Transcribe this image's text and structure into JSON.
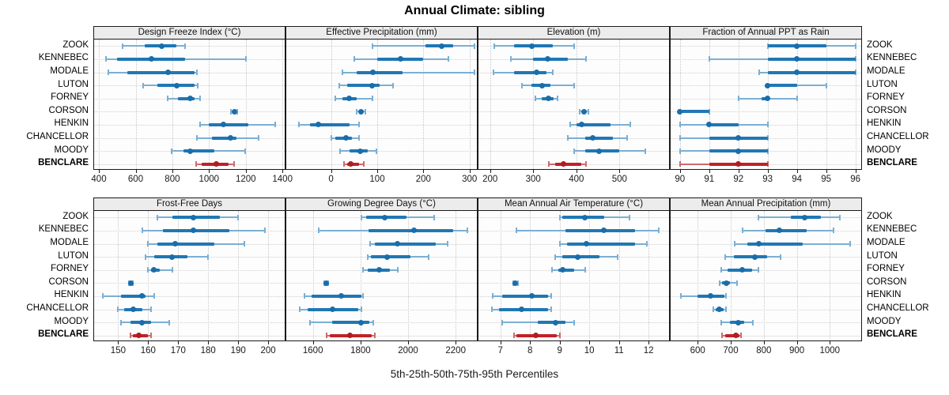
{
  "title": "Annual Climate: sibling",
  "caption": "5th-25th-50th-75th-95th Percentiles",
  "highlight_station": "BENCLARE",
  "colors": {
    "blue": "#2077b4",
    "blue_light": "#7bafd3",
    "blue_dot": "#1a6dab",
    "red": "#bf2227",
    "red_light": "#cf6a6c",
    "red_dot": "#b01c20",
    "strip_bg": "#ececec",
    "grid": "#c9c9c9",
    "border": "#1a1a1a"
  },
  "chart_data": {
    "type": "percentile-dotplot-trellis",
    "percentiles": [
      5,
      25,
      50,
      75,
      95
    ],
    "legend_note": "dot = median, thick bar = 25th-75th, thin whisker with caps = 5th-95th",
    "rows": [
      "ZOOK",
      "KENNEBEC",
      "MODALE",
      "LUTON",
      "FORNEY",
      "CORSON",
      "HENKIN",
      "CHANCELLOR",
      "MOODY",
      "BENCLARE"
    ],
    "panels": [
      {
        "title": "Design Freeze Index (°C)",
        "row": 0,
        "ticks": [
          400,
          600,
          800,
          1000,
          1200,
          1400
        ],
        "xlim": [
          374,
          1412
        ],
        "values": [
          [
            530,
            650,
            740,
            820,
            870
          ],
          [
            440,
            500,
            685,
            870,
            1200
          ],
          [
            450,
            555,
            775,
            920,
            935
          ],
          [
            640,
            720,
            825,
            920,
            940
          ],
          [
            775,
            830,
            895,
            920,
            950
          ],
          [
            1120,
            1130,
            1137,
            1145,
            1152
          ],
          [
            950,
            1000,
            1080,
            1215,
            1360
          ],
          [
            935,
            1015,
            1115,
            1150,
            1270
          ],
          [
            795,
            860,
            895,
            1030,
            1195
          ],
          [
            930,
            960,
            1040,
            1105,
            1135
          ]
        ]
      },
      {
        "title": "Effective Precipitation (mm)",
        "row": 0,
        "ticks": [
          0,
          100,
          200,
          300
        ],
        "xlim": [
          -97,
          316
        ],
        "values": [
          [
            90,
            205,
            240,
            265,
            310
          ],
          [
            50,
            100,
            150,
            200,
            255
          ],
          [
            25,
            55,
            90,
            155,
            310
          ],
          [
            18,
            35,
            88,
            105,
            135
          ],
          [
            10,
            25,
            40,
            55,
            90
          ],
          [
            55,
            60,
            65,
            70,
            75
          ],
          [
            -70,
            -45,
            -28,
            40,
            60
          ],
          [
            0,
            10,
            32,
            45,
            60
          ],
          [
            20,
            40,
            63,
            80,
            98
          ],
          [
            28,
            35,
            42,
            60,
            70
          ]
        ]
      },
      {
        "title": "Elevation (m)",
        "row": 0,
        "ticks": [
          200,
          300,
          400,
          500
        ],
        "xlim": [
          173,
          615
        ],
        "values": [
          [
            210,
            255,
            297,
            345,
            395
          ],
          [
            248,
            300,
            333,
            380,
            422
          ],
          [
            207,
            255,
            307,
            330,
            345
          ],
          [
            273,
            295,
            320,
            340,
            395
          ],
          [
            305,
            320,
            335,
            348,
            357
          ],
          [
            408,
            413,
            417,
            423,
            428
          ],
          [
            385,
            400,
            413,
            480,
            525
          ],
          [
            380,
            420,
            438,
            485,
            518
          ],
          [
            395,
            420,
            453,
            500,
            560
          ],
          [
            337,
            350,
            370,
            412,
            422
          ]
        ]
      },
      {
        "title": "Fraction of Annual PPT as Rain",
        "row": 0,
        "ticks": [
          90,
          91,
          92,
          93,
          94,
          95,
          96
        ],
        "xlim": [
          89.68,
          96.2
        ],
        "values": [
          [
            93,
            93,
            94,
            95,
            96
          ],
          [
            91,
            93,
            94,
            96,
            96
          ],
          [
            92.7,
            93,
            94,
            96,
            96
          ],
          [
            93,
            93,
            93,
            94,
            95
          ],
          [
            92,
            92.8,
            93,
            93,
            94
          ],
          [
            90,
            90,
            90,
            91,
            91
          ],
          [
            90,
            91,
            91,
            92,
            93
          ],
          [
            90,
            91,
            92,
            93,
            93
          ],
          [
            90,
            91,
            92,
            93,
            93
          ],
          [
            90,
            91,
            92,
            93,
            93
          ]
        ]
      },
      {
        "title": "Frost-Free Days",
        "row": 1,
        "ticks": [
          150,
          160,
          170,
          180,
          190,
          200
        ],
        "xlim": [
          142,
          205.5
        ],
        "values": [
          [
            163,
            168,
            175,
            184,
            190
          ],
          [
            158,
            165,
            175,
            187,
            199
          ],
          [
            160,
            163,
            169,
            182,
            192
          ],
          [
            159,
            162,
            168,
            173,
            180
          ],
          [
            160,
            161,
            162,
            164,
            168
          ],
          [
            153.5,
            154,
            154.3,
            154.7,
            155
          ],
          [
            145,
            151,
            158,
            159,
            162
          ],
          [
            150,
            152,
            155,
            158,
            161
          ],
          [
            151,
            154,
            158,
            161,
            167
          ],
          [
            154,
            155,
            157,
            160,
            161
          ]
        ]
      },
      {
        "title": "Growing Degree Days (°C)",
        "row": 1,
        "ticks": [
          1600,
          1800,
          2000,
          2200
        ],
        "xlim": [
          1488,
          2289
        ],
        "values": [
          [
            1805,
            1825,
            1900,
            1995,
            2110
          ],
          [
            1625,
            1835,
            2025,
            2190,
            2250
          ],
          [
            1840,
            1860,
            1955,
            2115,
            2165
          ],
          [
            1830,
            1845,
            1910,
            2010,
            2085
          ],
          [
            1810,
            1830,
            1880,
            1925,
            1955
          ],
          [
            1646,
            1650,
            1655,
            1660,
            1665
          ],
          [
            1565,
            1595,
            1720,
            1803,
            1810
          ],
          [
            1545,
            1578,
            1682,
            1792,
            1805
          ],
          [
            1588,
            1682,
            1803,
            1836,
            1852
          ],
          [
            1657,
            1670,
            1755,
            1847,
            1861
          ]
        ]
      },
      {
        "title": "Mean Annual Air Temperature (°C)",
        "row": 1,
        "ticks": [
          7,
          8,
          9,
          10,
          11,
          12
        ],
        "xlim": [
          6.26,
          12.69
        ],
        "values": [
          [
            9.0,
            9.1,
            9.85,
            10.5,
            11.35
          ],
          [
            7.55,
            9.2,
            10.5,
            11.55,
            12.35
          ],
          [
            9.0,
            9.25,
            9.9,
            11.55,
            11.95
          ],
          [
            8.85,
            9.1,
            9.6,
            10.35,
            10.95
          ],
          [
            8.75,
            8.95,
            9.1,
            9.5,
            9.85
          ],
          [
            7.42,
            7.46,
            7.5,
            7.55,
            7.6
          ],
          [
            6.75,
            7.05,
            8.05,
            8.6,
            8.7
          ],
          [
            6.7,
            6.95,
            7.7,
            8.6,
            8.7
          ],
          [
            7.05,
            8.25,
            8.85,
            9.2,
            9.5
          ],
          [
            7.45,
            7.55,
            8.2,
            8.9,
            9.0
          ]
        ]
      },
      {
        "title": "Mean Annual Precipitation (mm)",
        "row": 1,
        "ticks": [
          600,
          700,
          800,
          900,
          1000
        ],
        "xlim": [
          518,
          1095
        ],
        "values": [
          [
            784,
            882,
            924,
            974,
            1030
          ],
          [
            735,
            805,
            848,
            930,
            1010
          ],
          [
            712,
            750,
            784,
            918,
            1062
          ],
          [
            684,
            710,
            774,
            810,
            850
          ],
          [
            672,
            690,
            735,
            765,
            784
          ],
          [
            666,
            674,
            686,
            698,
            718
          ],
          [
            550,
            600,
            638,
            680,
            686
          ],
          [
            647,
            655,
            664,
            678,
            686
          ],
          [
            670,
            698,
            722,
            740,
            767
          ],
          [
            674,
            682,
            715,
            727,
            731
          ]
        ]
      }
    ]
  }
}
